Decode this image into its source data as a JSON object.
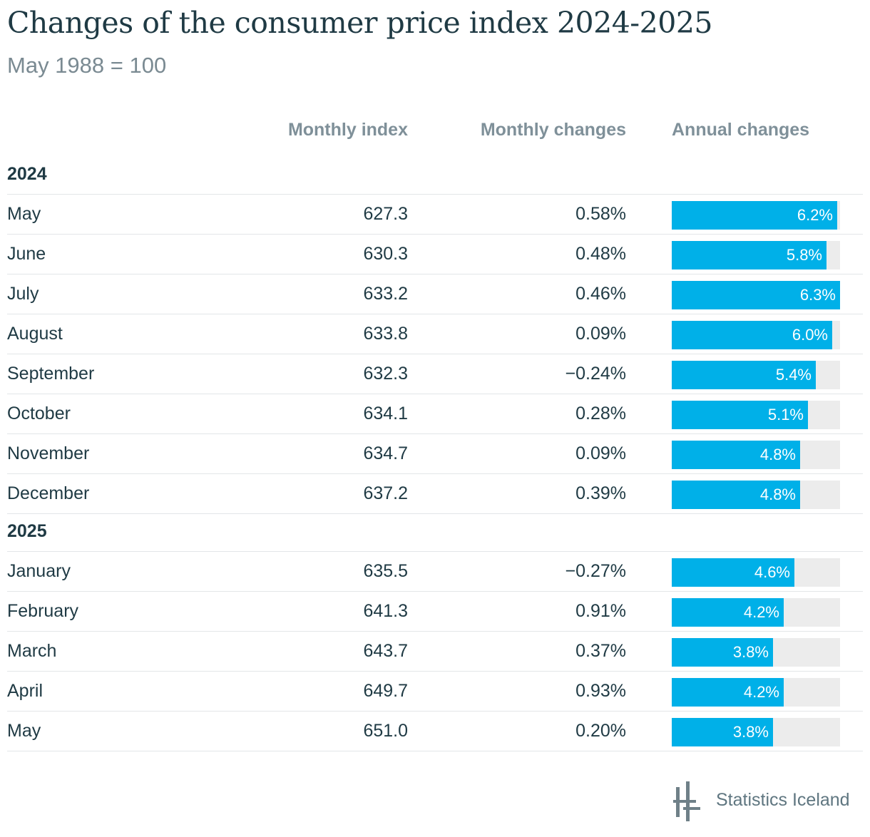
{
  "title": "Changes of the consumer price index 2024-2025",
  "subtitle": "May 1988 = 100",
  "headers": {
    "monthly_index": "Monthly index",
    "monthly_changes": "Monthly changes",
    "annual_changes": "Annual changes"
  },
  "branding": {
    "name": "Statistics Iceland",
    "icon": "statistics-iceland-logo-icon"
  },
  "colors": {
    "bar": "#00b0e8",
    "bar_track": "#ececec",
    "text": "#1f3a44",
    "header": "#7f9099"
  },
  "chart_data": {
    "type": "table",
    "title": "Changes of the consumer price index 2024-2025",
    "subtitle": "May 1988 = 100",
    "columns": [
      "Monthly index",
      "Monthly changes",
      "Annual changes"
    ],
    "annual_bar_max": 6.3,
    "groups": [
      {
        "year": "2024",
        "rows": [
          {
            "month": "May",
            "index": "627.3",
            "monthly": "0.58%",
            "annual_label": "6.2%",
            "annual": 6.2
          },
          {
            "month": "June",
            "index": "630.3",
            "monthly": "0.48%",
            "annual_label": "5.8%",
            "annual": 5.8
          },
          {
            "month": "July",
            "index": "633.2",
            "monthly": "0.46%",
            "annual_label": "6.3%",
            "annual": 6.3
          },
          {
            "month": "August",
            "index": "633.8",
            "monthly": "0.09%",
            "annual_label": "6.0%",
            "annual": 6.0
          },
          {
            "month": "September",
            "index": "632.3",
            "monthly": "−0.24%",
            "annual_label": "5.4%",
            "annual": 5.4
          },
          {
            "month": "October",
            "index": "634.1",
            "monthly": "0.28%",
            "annual_label": "5.1%",
            "annual": 5.1
          },
          {
            "month": "November",
            "index": "634.7",
            "monthly": "0.09%",
            "annual_label": "4.8%",
            "annual": 4.8
          },
          {
            "month": "December",
            "index": "637.2",
            "monthly": "0.39%",
            "annual_label": "4.8%",
            "annual": 4.8
          }
        ]
      },
      {
        "year": "2025",
        "rows": [
          {
            "month": "January",
            "index": "635.5",
            "monthly": "−0.27%",
            "annual_label": "4.6%",
            "annual": 4.6
          },
          {
            "month": "February",
            "index": "641.3",
            "monthly": "0.91%",
            "annual_label": "4.2%",
            "annual": 4.2
          },
          {
            "month": "March",
            "index": "643.7",
            "monthly": "0.37%",
            "annual_label": "3.8%",
            "annual": 3.8
          },
          {
            "month": "April",
            "index": "649.7",
            "monthly": "0.93%",
            "annual_label": "4.2%",
            "annual": 4.2
          },
          {
            "month": "May",
            "index": "651.0",
            "monthly": "0.20%",
            "annual_label": "3.8%",
            "annual": 3.8
          }
        ]
      }
    ]
  }
}
